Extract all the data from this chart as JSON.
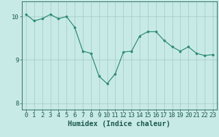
{
  "x": [
    0,
    1,
    2,
    3,
    4,
    5,
    6,
    7,
    8,
    9,
    10,
    11,
    12,
    13,
    14,
    15,
    16,
    17,
    18,
    19,
    20,
    21,
    22,
    23
  ],
  "y": [
    10.05,
    9.9,
    9.95,
    10.05,
    9.95,
    10.0,
    9.75,
    9.2,
    9.15,
    8.62,
    8.45,
    8.68,
    9.18,
    9.2,
    9.55,
    9.65,
    9.65,
    9.45,
    9.3,
    9.2,
    9.3,
    9.15,
    9.1,
    9.12
  ],
  "line_color": "#2e8b74",
  "marker_color": "#2e8b74",
  "bg_color": "#c8eae6",
  "grid_color": "#a0c8c4",
  "axis_color": "#3a7a6a",
  "text_color": "#1a5a4a",
  "xlabel": "Humidex (Indice chaleur)",
  "ylim": [
    7.85,
    10.35
  ],
  "xlim": [
    -0.5,
    23.5
  ],
  "yticks": [
    8,
    9,
    10
  ],
  "xticks": [
    0,
    1,
    2,
    3,
    4,
    5,
    6,
    7,
    8,
    9,
    10,
    11,
    12,
    13,
    14,
    15,
    16,
    17,
    18,
    19,
    20,
    21,
    22,
    23
  ],
  "tick_fontsize": 6.5,
  "label_fontsize": 7.5
}
